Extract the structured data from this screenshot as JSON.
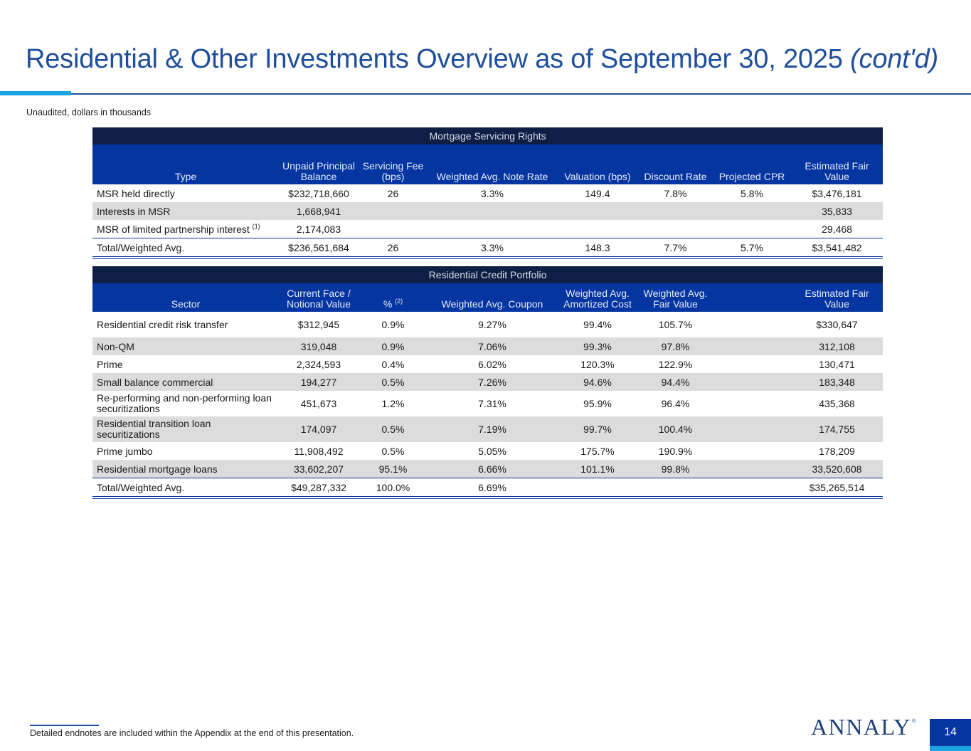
{
  "header": {
    "title": "Residential & Other Investments Overview as of September 30, 2025",
    "title_suffix": "(cont'd)",
    "subtitle": "Unaudited, dollars in thousands"
  },
  "msr_table": {
    "band": "Mortgage Servicing Rights",
    "columns": [
      "Type",
      "Unpaid Principal Balance",
      "Servicing Fee (bps)",
      "Weighted Avg. Note Rate",
      "Valuation (bps)",
      "Discount Rate",
      "Projected CPR",
      "Estimated Fair Value"
    ],
    "rows": [
      {
        "type": "MSR held directly",
        "sup": "",
        "upb": "$232,718,660",
        "fee": "26",
        "note_rate": "3.3%",
        "valuation": "149.4",
        "discount": "7.8%",
        "cpr": "5.8%",
        "fv": "$3,476,181"
      },
      {
        "type": "Interests in MSR",
        "sup": "",
        "upb": "1,668,941",
        "fee": "",
        "note_rate": "",
        "valuation": "",
        "discount": "",
        "cpr": "",
        "fv": "35,833"
      },
      {
        "type": "MSR of limited partnership interest",
        "sup": "(1)",
        "upb": "2,174,083",
        "fee": "",
        "note_rate": "",
        "valuation": "",
        "discount": "",
        "cpr": "",
        "fv": "29,468"
      }
    ],
    "total": {
      "type": "Total/Weighted Avg.",
      "upb": "$236,561,684",
      "fee": "26",
      "note_rate": "3.3%",
      "valuation": "148.3",
      "discount": "7.7%",
      "cpr": "5.7%",
      "fv": "$3,541,482"
    }
  },
  "rcp_table": {
    "band": "Residential Credit Portfolio",
    "columns": [
      "Sector",
      "Current Face / Notional Value",
      "%",
      "Weighted Avg. Coupon",
      "Weighted Avg. Amortized Cost",
      "Weighted Avg. Fair Value",
      "",
      "Estimated Fair Value"
    ],
    "pct_sup": "(2)",
    "rows": [
      {
        "sector": "Residential credit risk transfer",
        "face": "$312,945",
        "pct": "0.9%",
        "coupon": "9.27%",
        "amort": "99.4%",
        "fairval": "105.7%",
        "fv": "$330,647"
      },
      {
        "sector": "Non-QM",
        "face": "319,048",
        "pct": "0.9%",
        "coupon": "7.06%",
        "amort": "99.3%",
        "fairval": "97.8%",
        "fv": "312,108"
      },
      {
        "sector": "Prime",
        "face": "2,324,593",
        "pct": "0.4%",
        "coupon": "6.02%",
        "amort": "120.3%",
        "fairval": "122.9%",
        "fv": "130,471"
      },
      {
        "sector": "Small balance commercial",
        "face": "194,277",
        "pct": "0.5%",
        "coupon": "7.26%",
        "amort": "94.6%",
        "fairval": "94.4%",
        "fv": "183,348"
      },
      {
        "sector": "Re-performing and non-performing loan securitizations",
        "face": "451,673",
        "pct": "1.2%",
        "coupon": "7.31%",
        "amort": "95.9%",
        "fairval": "96.4%",
        "fv": "435,368"
      },
      {
        "sector": "Residential transition loan securitizations",
        "face": "174,097",
        "pct": "0.5%",
        "coupon": "7.19%",
        "amort": "99.7%",
        "fairval": "100.4%",
        "fv": "174,755"
      },
      {
        "sector": "Prime jumbo",
        "face": "11,908,492",
        "pct": "0.5%",
        "coupon": "5.05%",
        "amort": "175.7%",
        "fairval": "190.9%",
        "fv": "178,209"
      },
      {
        "sector": "Residential mortgage loans",
        "face": "33,602,207",
        "pct": "95.1%",
        "coupon": "6.66%",
        "amort": "101.1%",
        "fairval": "99.8%",
        "fv": "33,520,608"
      }
    ],
    "total": {
      "sector": "Total/Weighted Avg.",
      "face": "$49,287,332",
      "pct": "100.0%",
      "coupon": "6.69%",
      "amort": "",
      "fairval": "",
      "fv": "$35,265,514"
    }
  },
  "footer": {
    "note": "Detailed endnotes are included within the Appendix at the end of this presentation.",
    "logo": "ANNALY",
    "logo_mark": "®",
    "page": "14"
  }
}
